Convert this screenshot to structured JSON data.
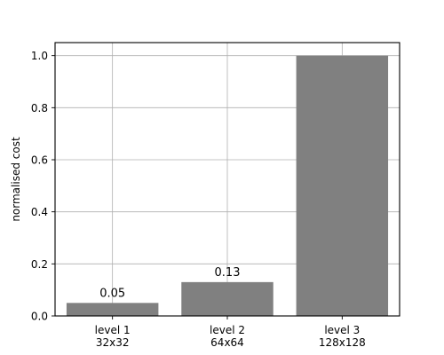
{
  "chart_data": {
    "type": "bar",
    "categories": [
      [
        "level 1",
        "32x32"
      ],
      [
        "level 2",
        "64x64"
      ],
      [
        "level 3",
        "128x128"
      ]
    ],
    "values": [
      0.05,
      0.13,
      1.0
    ],
    "data_labels": [
      "0.05",
      "0.13",
      ""
    ],
    "title": "",
    "xlabel": "",
    "ylabel": "normalised cost",
    "ylim": [
      0,
      1.05
    ],
    "yticks": [
      0.0,
      0.2,
      0.4,
      0.6,
      0.8,
      1.0
    ],
    "ytick_labels": [
      "0.0",
      "0.2",
      "0.4",
      "0.6",
      "0.8",
      "1.0"
    ],
    "grid": true,
    "bar_color": "#808080",
    "grid_color": "#b0b0b0"
  }
}
